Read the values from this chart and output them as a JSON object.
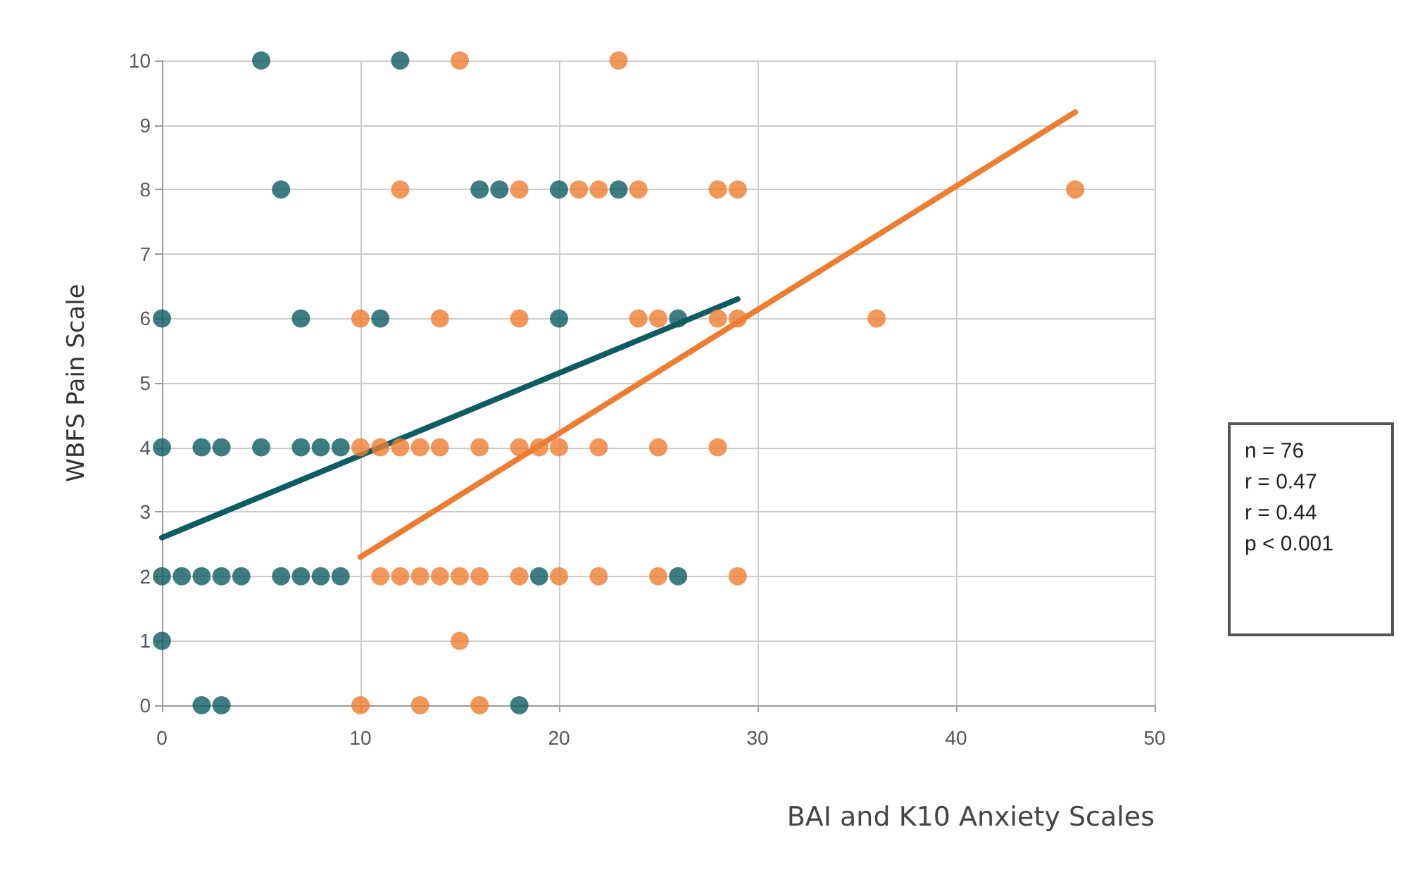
{
  "chart_data": {
    "type": "scatter",
    "ylabel": "WBFS Pain Scale",
    "xlabel": "BAI and K10 Anxiety Scales",
    "xlim": [
      0,
      50
    ],
    "xticks": [
      0,
      10,
      20,
      30,
      40,
      50
    ],
    "ylim": [
      0,
      10
    ],
    "yticks": [
      0,
      1,
      2,
      3,
      4,
      5,
      6,
      7,
      8,
      9,
      10
    ],
    "grid": true,
    "marker": "circle",
    "annotations": [
      "n = 76",
      "r = 0.47",
      "r = 0.44",
      "p < 0.001"
    ],
    "series": [
      {
        "color": "#0d5c63",
        "x": [
          5,
          12,
          6,
          16,
          17,
          20,
          23,
          0,
          7,
          11,
          20,
          26,
          0,
          2,
          3,
          5,
          7,
          8,
          9,
          0,
          1,
          2,
          3,
          4,
          6,
          7,
          8,
          9,
          19,
          26,
          0,
          2,
          3,
          18
        ],
        "values": [
          10,
          10,
          8,
          8,
          8,
          8,
          8,
          6,
          6,
          6,
          6,
          6,
          4,
          4,
          4,
          4,
          4,
          4,
          4,
          2,
          2,
          2,
          2,
          2,
          2,
          2,
          2,
          2,
          2,
          2,
          1,
          0,
          0,
          0
        ]
      },
      {
        "color": "#ed7d31",
        "x": [
          15,
          23,
          12,
          18,
          21,
          22,
          24,
          28,
          29,
          46,
          10,
          14,
          18,
          24,
          25,
          28,
          29,
          36,
          10,
          11,
          12,
          13,
          14,
          16,
          18,
          19,
          20,
          22,
          25,
          28,
          11,
          12,
          13,
          14,
          15,
          16,
          18,
          20,
          22,
          25,
          29,
          15,
          10,
          13,
          16
        ],
        "values": [
          10,
          10,
          8,
          8,
          8,
          8,
          8,
          8,
          8,
          8,
          6,
          6,
          6,
          6,
          6,
          6,
          6,
          6,
          4,
          4,
          4,
          4,
          4,
          4,
          4,
          4,
          4,
          4,
          4,
          4,
          2,
          2,
          2,
          2,
          2,
          2,
          2,
          2,
          2,
          2,
          2,
          1,
          0,
          0,
          0
        ]
      },
      {
        "type": "line",
        "color": "#0d5c63",
        "marker": "none",
        "x": [
          0,
          29
        ],
        "values": [
          2.6,
          6.3
        ]
      },
      {
        "type": "line",
        "color": "#ed7d31",
        "marker": "none",
        "x": [
          10,
          46
        ],
        "values": [
          2.3,
          9.2
        ]
      }
    ]
  }
}
